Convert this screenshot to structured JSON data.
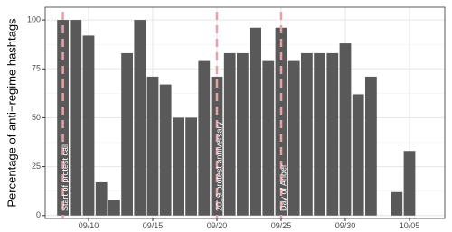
{
  "chart_data": {
    "type": "bar",
    "y_label": "Percentage of anti−regime hashtags",
    "categories": [
      null,
      null,
      "09/10",
      null,
      null,
      null,
      null,
      "09/15",
      null,
      null,
      null,
      null,
      "09/20",
      null,
      null,
      null,
      null,
      "09/25",
      null,
      null,
      null,
      null,
      "09/30",
      null,
      null,
      null,
      null,
      "10/05"
    ],
    "values": [
      100,
      100,
      92,
      17,
      8,
      83,
      100,
      71,
      67,
      50,
      50,
      79,
      71,
      83,
      83,
      96,
      79,
      96,
      79,
      83,
      83,
      83,
      88,
      62,
      71,
      null,
      12,
      33
    ],
    "color": "#595959",
    "ylim": [
      -1.5,
      106.5
    ],
    "yticks": [
      0,
      25,
      50,
      75,
      100
    ],
    "grid": true,
    "annotations": [
      {
        "text": "Start of protest call",
        "index": 0
      },
      {
        "text": "2019 protest anniversary",
        "index": 12
      },
      {
        "text": "Day of Anger",
        "index": 17
      }
    ],
    "annotation_color": "#e8a0a8"
  }
}
